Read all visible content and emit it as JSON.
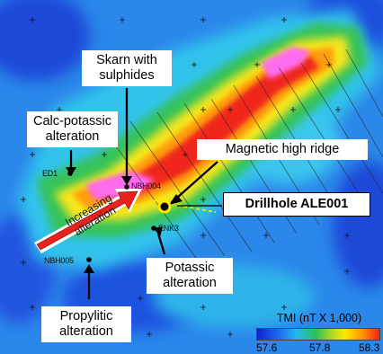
{
  "callouts": {
    "skarn": "Skarn with sulphides",
    "skarn_line1": "Skarn with",
    "skarn_line2": "sulphides",
    "calc_line1": "Calc-potassic",
    "calc_line2": "alteration",
    "mag_ridge": "Magnetic high ridge",
    "drillhole": "Drillhole ALE001",
    "potassic_line1": "Potassic",
    "potassic_line2": "alteration",
    "propylitic_line1": "Propylitic",
    "propylitic_line2": "alteration"
  },
  "arrow_label": {
    "line1": "Increasing",
    "line2": "alteration"
  },
  "drillholes": {
    "ed1": "ED1",
    "nbh004": "NBH004",
    "enk3": "ENK3",
    "nbh005": "NBH005"
  },
  "legend": {
    "title": "TMI (nT X 1,000)",
    "min": "57.6",
    "mid": "57.8",
    "max": "58.3",
    "colors": [
      "#1020d0",
      "#1e6df0",
      "#22b7ee",
      "#2ec05a",
      "#a7d62a",
      "#ffe800",
      "#ff9a00",
      "#f5221e"
    ]
  },
  "colors": {
    "arrow_fill": "#e8231e",
    "arrow_outline": "#ffffff",
    "high_core": "#ff6cf0",
    "drillhole_ring": "#ffe800"
  }
}
